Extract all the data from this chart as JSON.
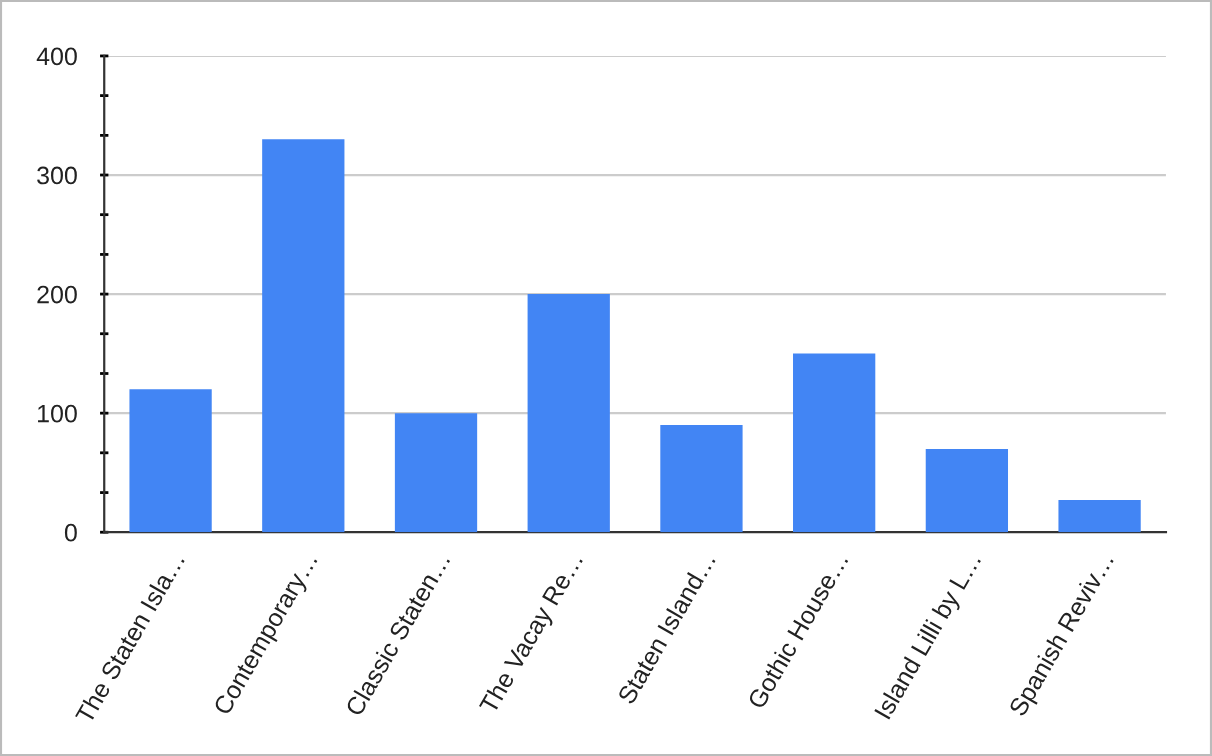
{
  "chart_data": {
    "type": "bar",
    "categories": [
      "The Staten Isla…",
      "Contemporary…",
      "Classic Staten…",
      "The Vacay Re…",
      "Staten Island…",
      "Gothic House…",
      "Island Lilli by L…",
      "Spanish Reviv…"
    ],
    "values": [
      120,
      330,
      100,
      200,
      90,
      150,
      70,
      27
    ],
    "color": "#4285f4",
    "ylim": [
      0,
      400
    ],
    "yticks": [
      0,
      {
        "value": 33.3,
        "label": null
      },
      {
        "value": 66.7,
        "label": null
      },
      100,
      {
        "value": 133.3,
        "label": null
      },
      {
        "value": 166.7,
        "label": null
      },
      200,
      {
        "value": 233.3,
        "label": null
      },
      {
        "value": 266.7,
        "label": null
      },
      300,
      {
        "value": 333.3,
        "label": null
      },
      {
        "value": 366.7,
        "label": null
      },
      400
    ],
    "grid": "y",
    "legend": false
  }
}
